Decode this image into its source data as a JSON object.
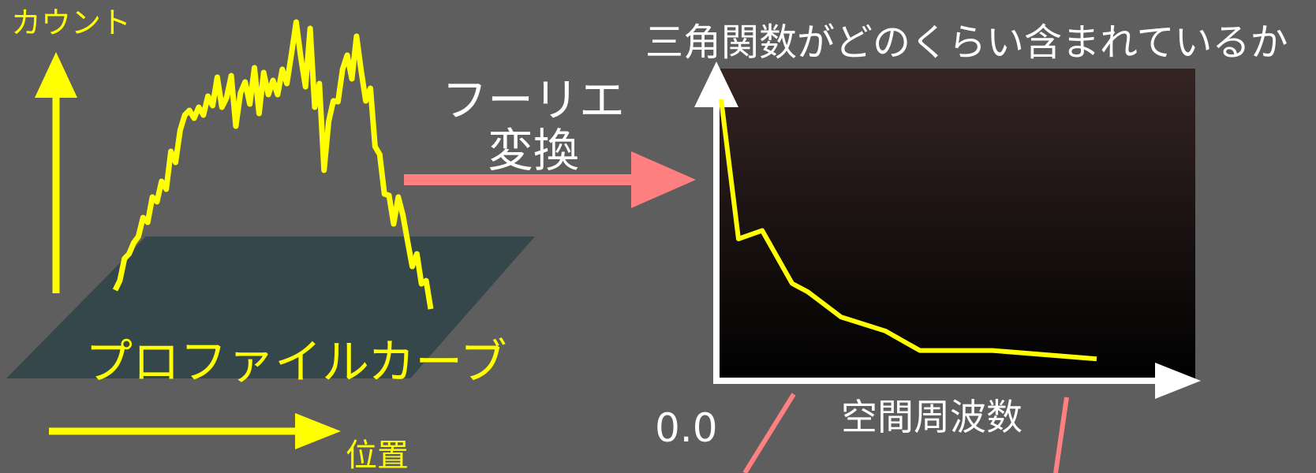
{
  "left_panel": {
    "y_axis_label": "カウント",
    "x_axis_label": "位置",
    "surface_label": "プロファイルカーブ",
    "profile_y": [
      0,
      12,
      40,
      46,
      60,
      68,
      92,
      86,
      118,
      112,
      138,
      128,
      176,
      162,
      203,
      222,
      228,
      218,
      232,
      222,
      246,
      234,
      270,
      232,
      244,
      272,
      208,
      250,
      264,
      236,
      282,
      224,
      276,
      248,
      266,
      248,
      280,
      262,
      300,
      340,
      295,
      258,
      332,
      232,
      262,
      152,
      214,
      240,
      239,
      280,
      298,
      268,
      322,
      278,
      240,
      256,
      182,
      172,
      122,
      120,
      84,
      118,
      95,
      62,
      30,
      46,
      8,
      12,
      -24
    ]
  },
  "transform": {
    "line1": "フーリエ",
    "line2": "変換"
  },
  "right_panel": {
    "title": "三角関数がどのくらい含まれているか",
    "x_axis_label": "空間周波数",
    "origin_label": "0.0",
    "spectrum_y": [
      1.0,
      0.5,
      0.53,
      0.34,
      0.31,
      0.22,
      0.17,
      0.1,
      0.1,
      0.07
    ]
  },
  "colors": {
    "background": "#5e5e5e",
    "yellow": "#ffff00",
    "white": "#ffffff",
    "pink": "#ff8080",
    "plane": "#35474a"
  }
}
